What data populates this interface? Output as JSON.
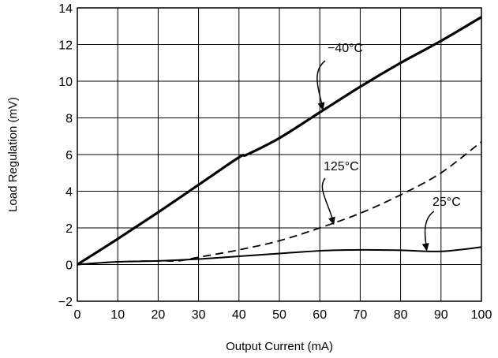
{
  "chart_data": {
    "type": "line",
    "title": "",
    "xlabel": "Output Current (mA)",
    "ylabel": "Load Regulation (mV)",
    "xlim": [
      0,
      100
    ],
    "ylim": [
      -2,
      14
    ],
    "xticks": [
      0,
      10,
      20,
      30,
      40,
      50,
      60,
      70,
      80,
      90,
      100
    ],
    "yticks": [
      -2,
      0,
      2,
      4,
      6,
      8,
      10,
      12,
      14
    ],
    "ytick_labels": [
      "−2",
      "0",
      "2",
      "4",
      "6",
      "8",
      "10",
      "12",
      "14"
    ],
    "grid": true,
    "legend": "none",
    "series": [
      {
        "name": "−40°C",
        "style": "solid-thick",
        "x": [
          0,
          10,
          20,
          30,
          40,
          42,
          50,
          60,
          70,
          80,
          90,
          100
        ],
        "y": [
          0,
          1.4,
          2.85,
          4.35,
          5.85,
          6.0,
          6.9,
          8.3,
          9.7,
          11.0,
          12.2,
          13.5
        ]
      },
      {
        "name": "125°C",
        "style": "dashed",
        "x": [
          0,
          10,
          20,
          25,
          30,
          40,
          50,
          60,
          70,
          80,
          90,
          100
        ],
        "y": [
          0,
          0.15,
          0.2,
          0.2,
          0.4,
          0.8,
          1.3,
          2.0,
          2.8,
          3.8,
          5.0,
          6.7
        ]
      },
      {
        "name": "25°C",
        "style": "solid",
        "x": [
          0,
          10,
          20,
          30,
          40,
          50,
          60,
          70,
          80,
          90,
          100
        ],
        "y": [
          0,
          0.15,
          0.2,
          0.3,
          0.45,
          0.6,
          0.75,
          0.8,
          0.78,
          0.72,
          0.95
        ]
      }
    ],
    "annotations": [
      {
        "text": "−40°C",
        "arrow_tip": [
          60.8,
          8.4
        ]
      },
      {
        "text": "125°C",
        "arrow_tip": [
          63.5,
          2.15
        ]
      },
      {
        "text": "25°C",
        "arrow_tip": [
          86.5,
          0.72
        ]
      }
    ],
    "colors": {
      "line": "#000000",
      "grid": "#000000",
      "background": "#ffffff"
    }
  }
}
